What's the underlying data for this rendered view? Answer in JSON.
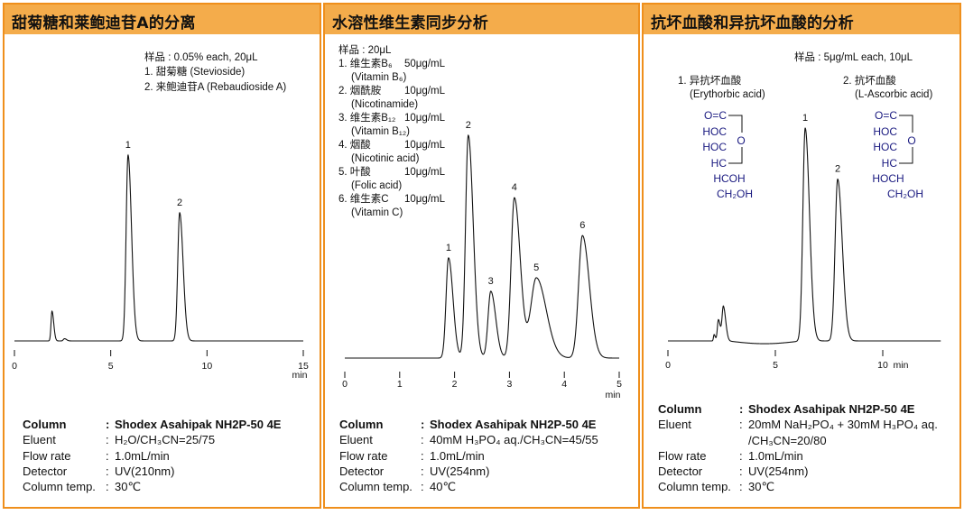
{
  "panels": [
    {
      "title": "甜菊糖和莱鲍迪苷A的分离",
      "sample_lines": [
        "样品 : 0.05% each, 20μL",
        "1. 甜菊糖 (Stevioside)",
        "2. 来鲍迪苷A (Rebaudioside A)"
      ],
      "conditions": [
        {
          "label": "Column",
          "value": "Shodex Asahipak NH2P-50 4E"
        },
        {
          "label": "Eluent",
          "value": "H₂O/CH₃CN=25/75"
        },
        {
          "label": "Flow rate",
          "value": "1.0mL/min"
        },
        {
          "label": "Detector",
          "value": "UV(210nm)"
        },
        {
          "label": "Column temp.",
          "value": "30℃"
        }
      ]
    },
    {
      "title": "水溶性维生素同步分析",
      "sample_lines": [
        "样品 : 20μL"
      ],
      "compounds": [
        {
          "name": "1. 维生素B₆",
          "conc": "50μg/mL",
          "en": "(Vitamin B₆)"
        },
        {
          "name": "2. 烟酰胺",
          "conc": "10μg/mL",
          "en": "(Nicotinamide)"
        },
        {
          "name": "3. 维生素B₁₂",
          "conc": "10μg/mL",
          "en": "(Vitamin B₁₂)"
        },
        {
          "name": "4. 烟酸",
          "conc": "10μg/mL",
          "en": "(Nicotinic acid)"
        },
        {
          "name": "5. 叶酸",
          "conc": "10μg/mL",
          "en": "(Folic acid)"
        },
        {
          "name": "6. 维生素C",
          "conc": "10μg/mL",
          "en": "(Vitamin C)"
        }
      ],
      "conditions": [
        {
          "label": "Column",
          "value": "Shodex Asahipak NH2P-50 4E"
        },
        {
          "label": "Eluent",
          "value": "40mM H₃PO₄ aq./CH₃CN=45/55"
        },
        {
          "label": "Flow rate",
          "value": "1.0mL/min"
        },
        {
          "label": "Detector",
          "value": "UV(254nm)"
        },
        {
          "label": "Column temp.",
          "value": "40℃"
        }
      ]
    },
    {
      "title": "抗坏血酸和异抗坏血酸的分析",
      "sample_lines": [
        "样品 : 5μg/mL each, 10μL"
      ],
      "compounds": [
        {
          "name": "1. 异抗坏血酸",
          "en": "(Erythorbic acid)",
          "structure": [
            "O=C",
            "HOC",
            "HOC",
            "HC",
            "HCOH",
            "CH₂OH"
          ],
          "ring_atom": "O"
        },
        {
          "name": "2. 抗坏血酸",
          "en": "(L-Ascorbic acid)",
          "structure": [
            "O=C",
            "HOC",
            "HOC",
            "HC",
            "HOCH",
            "CH₂OH"
          ],
          "ring_atom": "O"
        }
      ],
      "conditions": [
        {
          "label": "Column",
          "value": "Shodex Asahipak NH2P-50 4E"
        },
        {
          "label": "Eluent",
          "value": "20mM NaH₂PO₄ + 30mM H₃PO₄ aq."
        },
        {
          "label": "",
          "value": "/CH₃CN=20/80"
        },
        {
          "label": "Flow rate",
          "value": "1.0mL/min"
        },
        {
          "label": "Detector",
          "value": "UV(254nm)"
        },
        {
          "label": "Column temp.",
          "value": "30℃"
        }
      ]
    }
  ],
  "colors": {
    "border": "#ef8f1c",
    "header": "#f4ac4b",
    "trace": "#111111"
  },
  "chart_data": [
    {
      "type": "line",
      "xlabel": "min",
      "xlim": [
        0,
        15
      ],
      "xticks": [
        "0",
        "5",
        "10",
        "15"
      ],
      "grid": false,
      "peaks": [
        {
          "label": "",
          "rt": 1.95,
          "height": 16,
          "width_min": 0.05
        },
        {
          "label": "",
          "rt": 2.6,
          "height": 1.2,
          "width_min": 0.06
        },
        {
          "label": "1",
          "rt": 5.9,
          "height": 100,
          "width_min": 0.1
        },
        {
          "label": "2",
          "rt": 8.58,
          "height": 69,
          "width_min": 0.1
        }
      ]
    },
    {
      "type": "line",
      "xlabel": "min",
      "xlim": [
        0,
        5
      ],
      "xticks": [
        "0",
        "1",
        "2",
        "3",
        "4",
        "5"
      ],
      "grid": false,
      "peaks": [
        {
          "label": "1",
          "rt": 1.89,
          "height": 45,
          "width_min": 0.045
        },
        {
          "label": "2",
          "rt": 2.25,
          "height": 100,
          "width_min": 0.05
        },
        {
          "label": "3",
          "rt": 2.66,
          "height": 30,
          "width_min": 0.05
        },
        {
          "label": "4",
          "rt": 3.09,
          "height": 72,
          "width_min": 0.06
        },
        {
          "label": "5",
          "rt": 3.49,
          "height": 36,
          "width_min": 0.1
        },
        {
          "label": "6",
          "rt": 4.33,
          "height": 55,
          "width_min": 0.07
        }
      ]
    },
    {
      "type": "line",
      "xlabel": "min",
      "xlim": [
        0,
        12.7
      ],
      "xticks": [
        "0",
        "5",
        "10"
      ],
      "grid": false,
      "peaks": [
        {
          "label": "",
          "rt": 2.15,
          "height": 3,
          "width_min": 0.03
        },
        {
          "label": "",
          "rt": 2.35,
          "height": 10,
          "width_min": 0.05
        },
        {
          "label": "",
          "rt": 2.58,
          "height": 16,
          "width_min": 0.06
        },
        {
          "label": "1",
          "rt": 6.39,
          "height": 100,
          "width_min": 0.11
        },
        {
          "label": "2",
          "rt": 7.9,
          "height": 76,
          "width_min": 0.12
        }
      ]
    }
  ]
}
